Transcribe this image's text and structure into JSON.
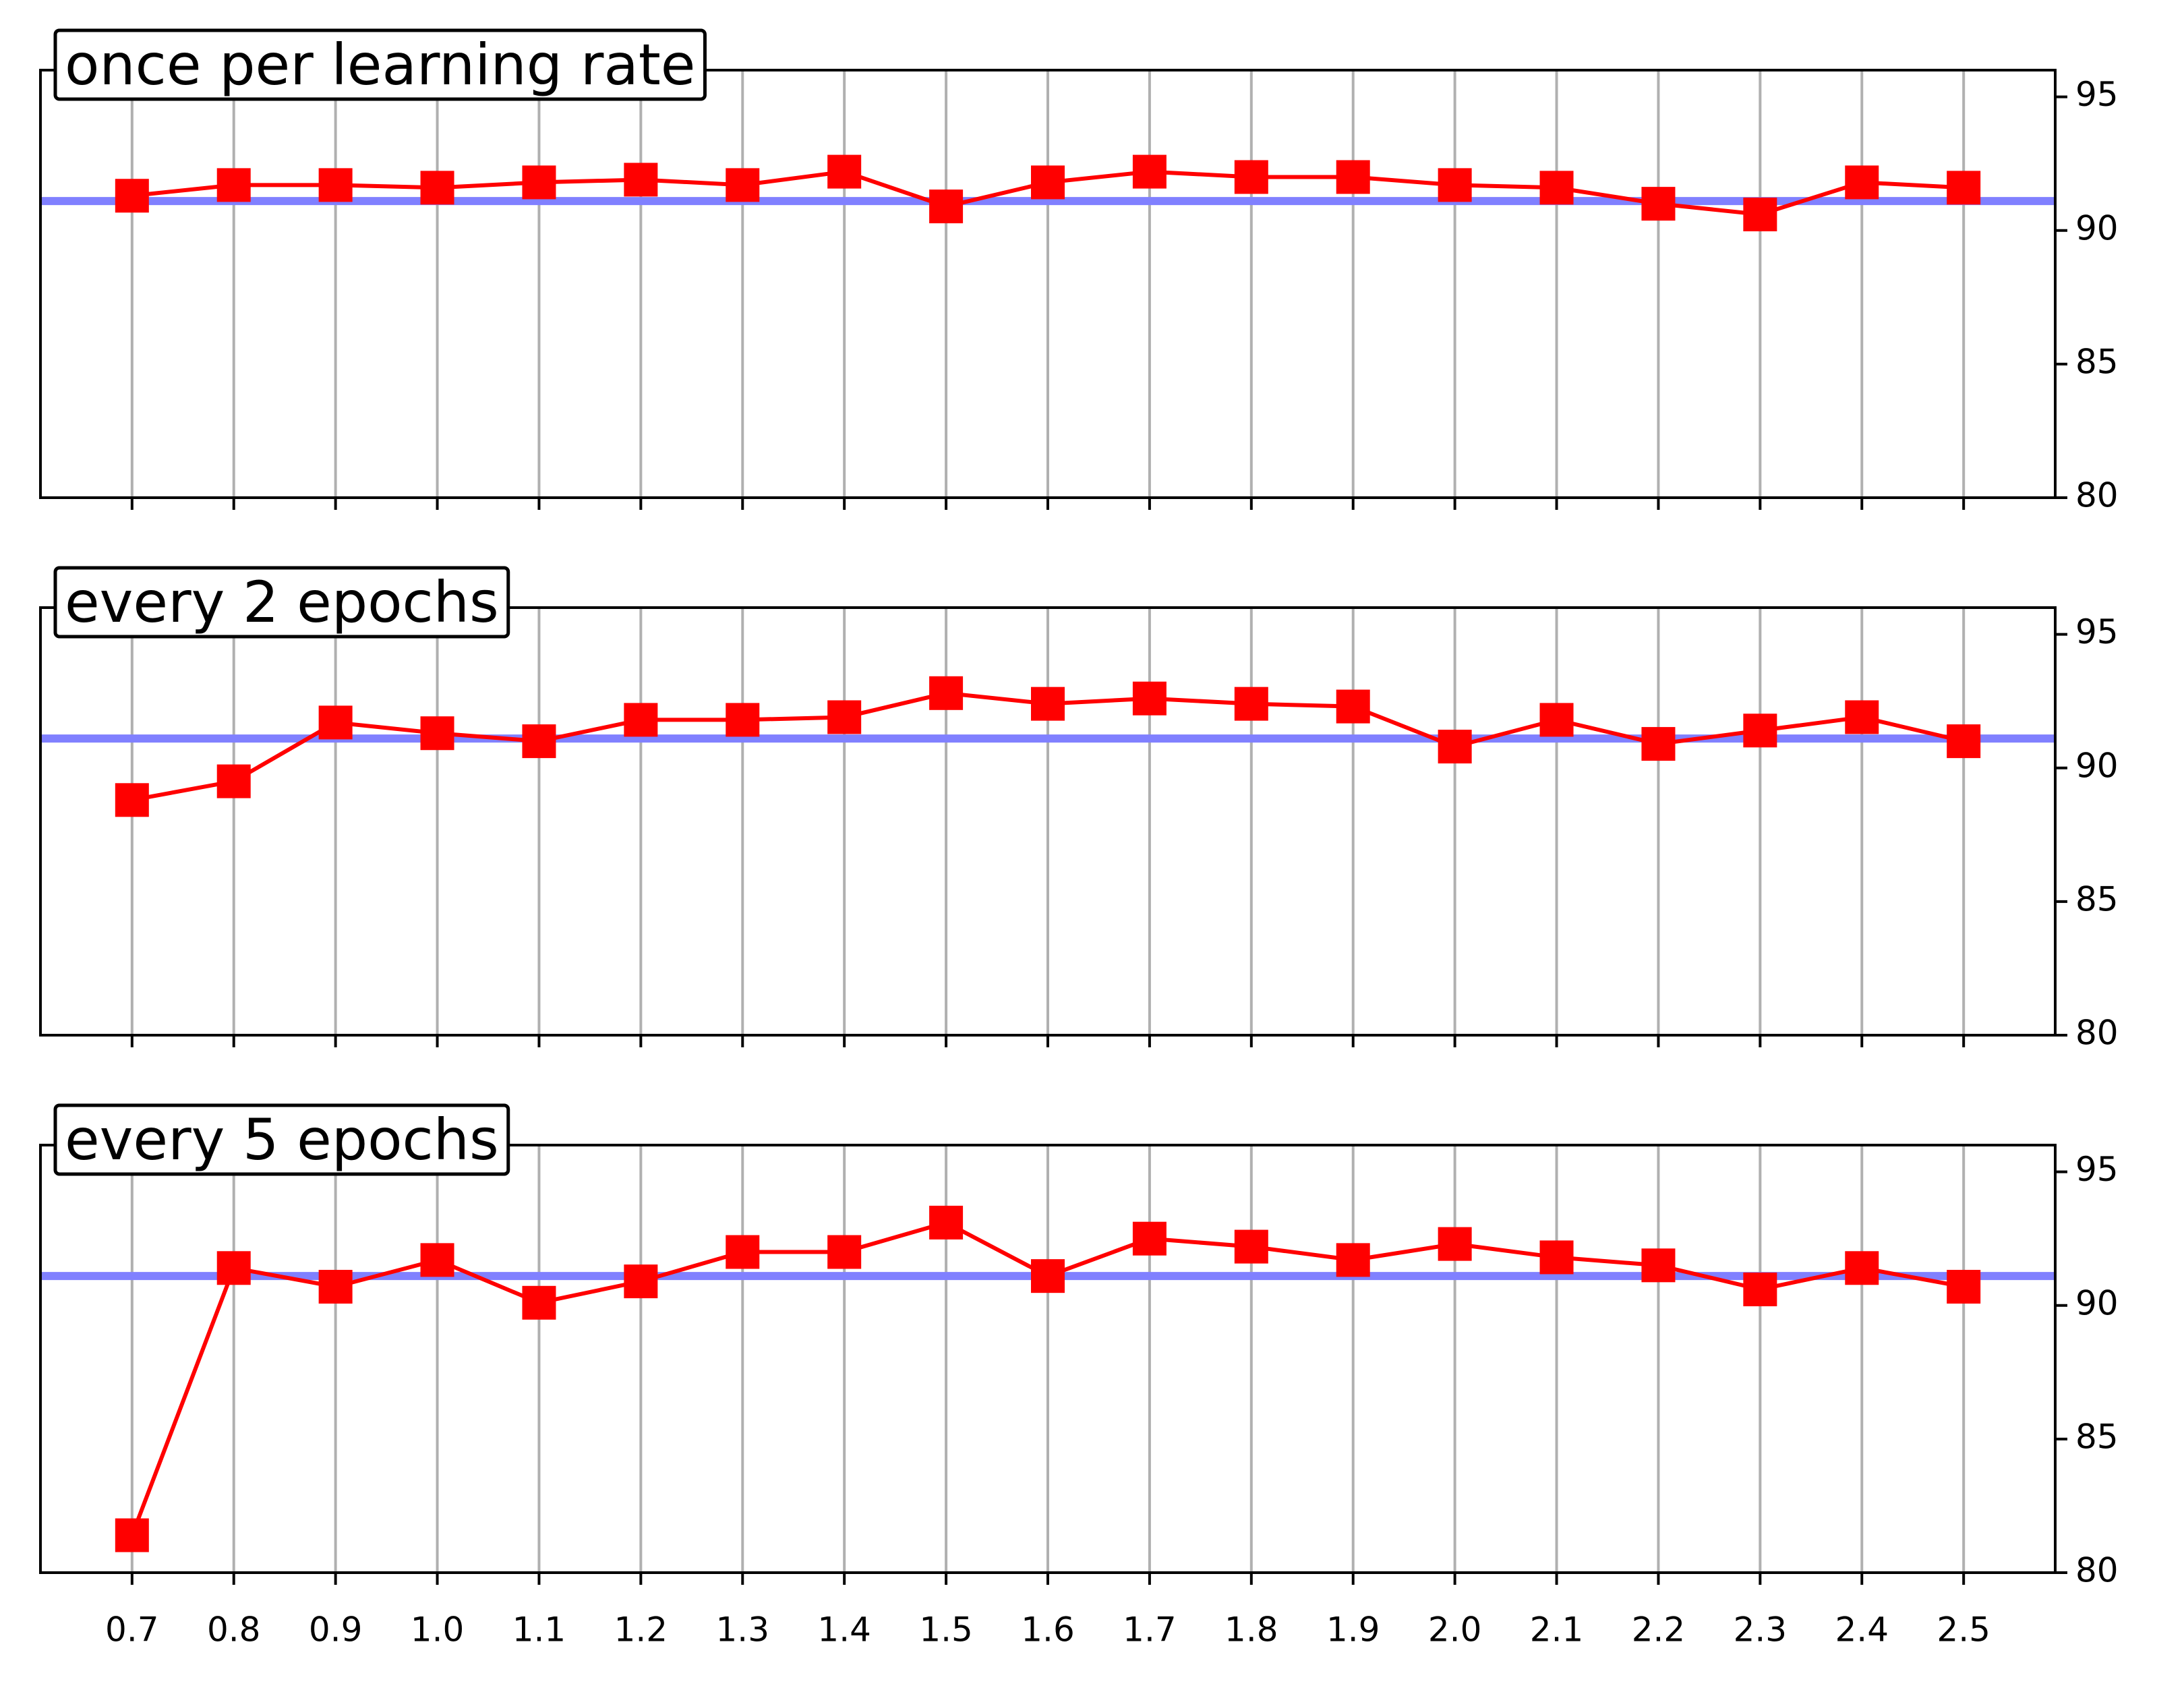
{
  "chart_data": [
    {
      "type": "line",
      "title": "once per learning rate",
      "categories": [
        null,
        null,
        null,
        null,
        null,
        null,
        null,
        null,
        null,
        null,
        null,
        null,
        null,
        null,
        null,
        null,
        null,
        null,
        null
      ],
      "series": [
        {
          "color": "#ff0000",
          "values": [
            91.3,
            91.7,
            91.7,
            91.6,
            91.8,
            91.9,
            91.7,
            92.2,
            90.9,
            91.8,
            92.2,
            92.0,
            92.0,
            91.7,
            91.6,
            91.0,
            90.6,
            91.8,
            91.6
          ]
        }
      ],
      "hlines": [
        {
          "value": 91.1,
          "color": "#8080ff"
        }
      ],
      "ylim": [
        80,
        96
      ],
      "yticks": [
        80,
        85,
        90,
        95
      ],
      "yaxis_side": "right",
      "grid": "x"
    },
    {
      "type": "line",
      "title": "every 2 epochs",
      "categories": [
        null,
        null,
        null,
        null,
        null,
        null,
        null,
        null,
        null,
        null,
        null,
        null,
        null,
        null,
        null,
        null,
        null,
        null,
        null
      ],
      "series": [
        {
          "color": "#ff0000",
          "values": [
            88.8,
            89.5,
            91.7,
            91.3,
            91.0,
            91.8,
            91.8,
            91.9,
            92.8,
            92.4,
            92.6,
            92.4,
            92.3,
            90.8,
            91.8,
            90.9,
            91.4,
            91.9,
            91.0
          ]
        }
      ],
      "hlines": [
        {
          "value": 91.1,
          "color": "#8080ff"
        }
      ],
      "ylim": [
        80,
        96
      ],
      "yticks": [
        80,
        85,
        90,
        95
      ],
      "yaxis_side": "right",
      "grid": "x"
    },
    {
      "type": "line",
      "title": "every 5 epochs",
      "categories": [
        "0.7",
        "0.8",
        "0.9",
        "1.0",
        "1.1",
        "1.2",
        "1.3",
        "1.4",
        "1.5",
        "1.6",
        "1.7",
        "1.8",
        "1.9",
        "2.0",
        "2.1",
        "2.2",
        "2.3",
        "2.4",
        "2.5"
      ],
      "series": [
        {
          "color": "#ff0000",
          "values": [
            81.4,
            91.4,
            90.7,
            91.7,
            90.1,
            90.9,
            92.0,
            92.0,
            93.1,
            91.1,
            92.5,
            92.2,
            91.7,
            92.3,
            91.8,
            91.5,
            90.6,
            91.4,
            90.7
          ]
        }
      ],
      "hlines": [
        {
          "value": 91.1,
          "color": "#8080ff"
        }
      ],
      "ylim": [
        80,
        96
      ],
      "yticks": [
        80,
        85,
        90,
        95
      ],
      "yaxis_side": "right",
      "grid": "x"
    }
  ]
}
